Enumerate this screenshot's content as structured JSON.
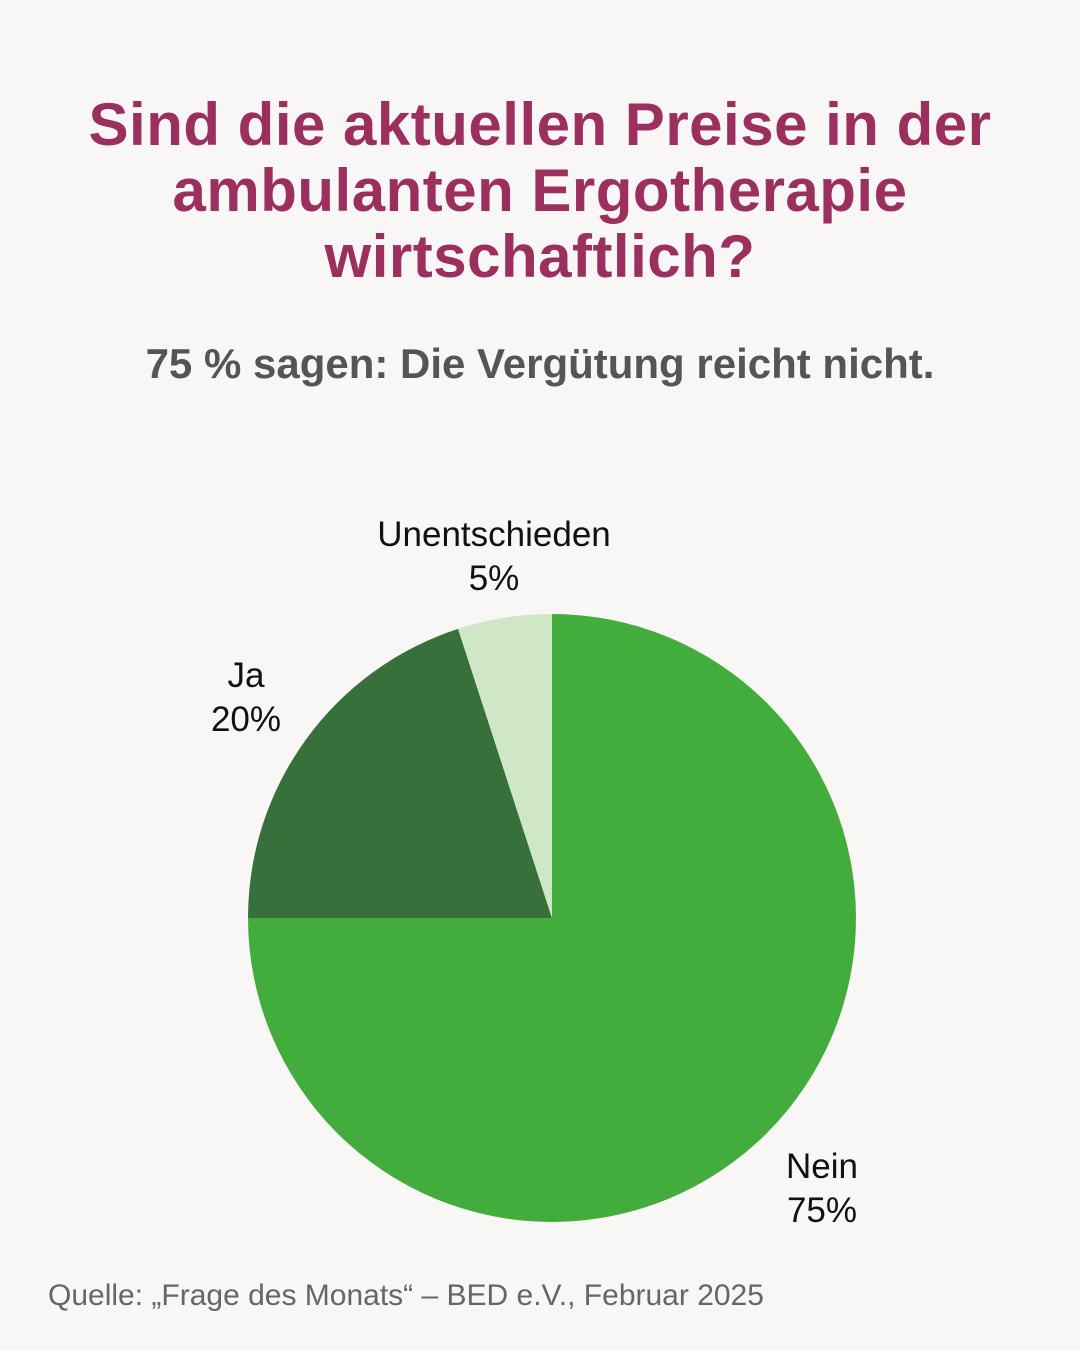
{
  "header": {
    "title": "Sind die aktuellen Preise in der ambulanten Ergotherapie wirtschaftlich?",
    "subtitle": "75 % sagen: Die Vergütung reicht nicht."
  },
  "chart_data": {
    "type": "pie",
    "categories": [
      "Nein",
      "Ja",
      "Unentschieden"
    ],
    "values": [
      75,
      20,
      5
    ],
    "value_labels": [
      "75%",
      "20%",
      "5%"
    ],
    "colors": [
      "#42ad3d",
      "#37703a",
      "#cfe7c6"
    ],
    "start": "12 o'clock",
    "direction": "clockwise",
    "legend": "none",
    "data_labels": "outside slices"
  },
  "footer": {
    "source": "Quelle: „Frage des Monats“ – BED e.V., Februar 2025"
  }
}
